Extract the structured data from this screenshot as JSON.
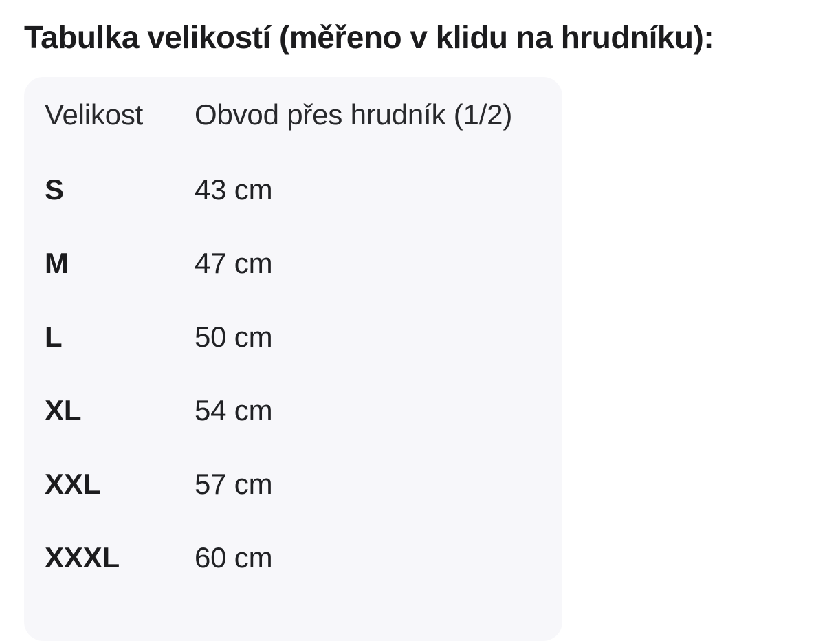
{
  "title": "Tabulka velikostí (měřeno v klidu na hrudníku):",
  "table": {
    "card_background": "#f7f7fa",
    "text_color": "#202124",
    "columns": {
      "size": "Velikost",
      "circumference": "Obvod přes hrudník (1/2)"
    },
    "rows": [
      {
        "size": "S",
        "value": "43 cm"
      },
      {
        "size": "M",
        "value": "47 cm"
      },
      {
        "size": "L",
        "value": "50 cm"
      },
      {
        "size": "XL",
        "value": "54 cm"
      },
      {
        "size": "XXL",
        "value": "57 cm"
      },
      {
        "size": "XXXL",
        "value": "60 cm"
      }
    ]
  }
}
